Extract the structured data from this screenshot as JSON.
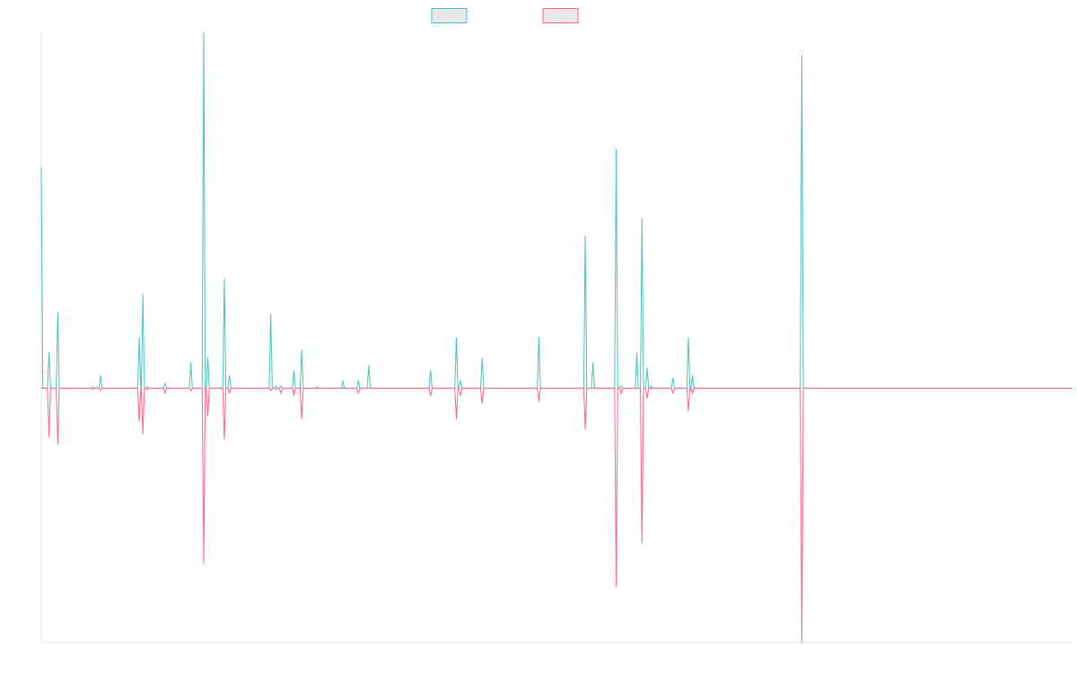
{
  "colors": {
    "series_a": "#4bc0c0",
    "series_b": "#ff6384",
    "legend_fill": "#e8e8e8",
    "axis": "#e5e5e5"
  },
  "chart_data": {
    "type": "line",
    "x_count": 201,
    "ylim": [
      -1.0,
      1.4
    ],
    "grid": false,
    "legend": "top-center",
    "series": [
      {
        "color": "#4bc0c0",
        "spikes": [
          [
            0,
            0.87
          ],
          [
            1.5,
            0.14
          ],
          [
            3.2,
            0.3
          ],
          [
            10,
            0.005
          ],
          [
            11.5,
            0.05
          ],
          [
            19,
            0.2
          ],
          [
            19.7,
            0.37
          ],
          [
            20.5,
            0.005
          ],
          [
            24,
            0.02
          ],
          [
            29,
            0.1
          ],
          [
            31.5,
            1.4
          ],
          [
            32.3,
            0.12
          ],
          [
            35.5,
            0.43
          ],
          [
            36.5,
            0.05
          ],
          [
            44.5,
            0.29
          ],
          [
            45.5,
            0.01
          ],
          [
            46.5,
            0.01
          ],
          [
            49,
            0.07
          ],
          [
            50.5,
            0.15
          ],
          [
            53.5,
            0.005
          ],
          [
            58.5,
            0.03
          ],
          [
            61.5,
            0.03
          ],
          [
            63.5,
            0.09
          ],
          [
            75.5,
            0.07
          ],
          [
            80.5,
            0.2
          ],
          [
            81.3,
            0.03
          ],
          [
            85.5,
            0.12
          ],
          [
            96.5,
            0.2
          ],
          [
            105.5,
            0.6
          ],
          [
            107,
            0.1
          ],
          [
            111.5,
            0.94
          ],
          [
            112.5,
            0.01
          ],
          [
            115.5,
            0.14
          ],
          [
            116.5,
            0.67
          ],
          [
            117.5,
            0.08
          ],
          [
            118.3,
            0.01
          ],
          [
            122.5,
            0.04
          ],
          [
            125.5,
            0.2
          ],
          [
            126.3,
            0.05
          ],
          [
            147.5,
            1.31
          ]
        ]
      },
      {
        "color": "#ff6384",
        "spikes": [
          [
            1.5,
            -0.19
          ],
          [
            3.2,
            -0.22
          ],
          [
            10,
            -0.005
          ],
          [
            11.5,
            -0.01
          ],
          [
            19,
            -0.13
          ],
          [
            19.7,
            -0.18
          ],
          [
            20.5,
            -0.005
          ],
          [
            24,
            -0.02
          ],
          [
            29,
            -0.01
          ],
          [
            31.5,
            -0.69
          ],
          [
            32.3,
            -0.11
          ],
          [
            35.5,
            -0.2
          ],
          [
            36.5,
            -0.02
          ],
          [
            44.5,
            -0.01
          ],
          [
            45.5,
            -0.005
          ],
          [
            46.5,
            -0.02
          ],
          [
            49,
            -0.03
          ],
          [
            50.5,
            -0.12
          ],
          [
            61.5,
            -0.02
          ],
          [
            75.5,
            -0.03
          ],
          [
            80.5,
            -0.12
          ],
          [
            81.3,
            -0.03
          ],
          [
            85.5,
            -0.06
          ],
          [
            96.5,
            -0.05
          ],
          [
            105.5,
            -0.16
          ],
          [
            111.5,
            -0.78
          ],
          [
            112.5,
            -0.02
          ],
          [
            116.5,
            -0.61
          ],
          [
            117.5,
            -0.04
          ],
          [
            122.5,
            -0.02
          ],
          [
            125.5,
            -0.09
          ],
          [
            126.3,
            -0.02
          ],
          [
            147.5,
            -1.0
          ]
        ]
      }
    ]
  }
}
